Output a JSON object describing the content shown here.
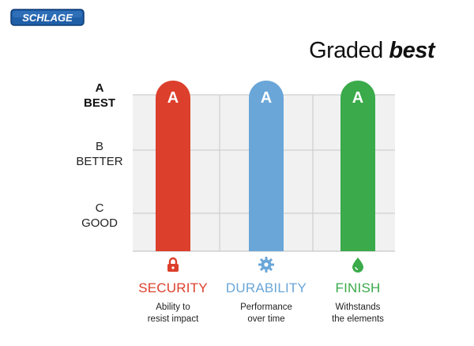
{
  "brand": {
    "logo_text": "SCHLAGE",
    "color": "#1f5fa8"
  },
  "headline": {
    "normal": "Graded ",
    "emphasis": "best"
  },
  "chart_data": {
    "type": "bar",
    "categories": [
      "SECURITY",
      "DURABILITY",
      "FINISH"
    ],
    "values": [
      "A",
      "A",
      "A"
    ],
    "y_levels": [
      {
        "grade": "A",
        "label": "BEST"
      },
      {
        "grade": "B",
        "label": "BETTER"
      },
      {
        "grade": "C",
        "label": "GOOD"
      }
    ],
    "colors": [
      "#dc3f2c",
      "#6aa6d8",
      "#3aaa4a"
    ],
    "descriptions": [
      [
        "Ability to",
        "resist impact"
      ],
      [
        "Performance",
        "over time"
      ],
      [
        "Withstands",
        "the elements"
      ]
    ],
    "icons": [
      "lock-icon",
      "gear-icon",
      "water-drop-icon"
    ],
    "grid": true
  }
}
